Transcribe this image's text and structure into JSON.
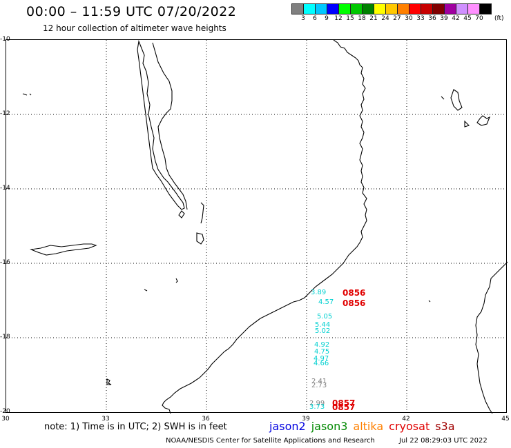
{
  "header": {
    "title": "00:00 – 11:59 UTC 07/20/2022",
    "subtitle": "12 hour collection of altimeter wave heights"
  },
  "legend": {
    "colors": [
      "#808080",
      "#00ffff",
      "#00c8ff",
      "#0000ff",
      "#00ff00",
      "#00c800",
      "#008000",
      "#ffff00",
      "#ffc800",
      "#ff8000",
      "#ff0000",
      "#c80000",
      "#800000",
      "#a000a0",
      "#d090ff",
      "#ff90ff",
      "#000000"
    ],
    "labels": [
      "3",
      "6",
      "9",
      "12",
      "15",
      "18",
      "21",
      "24",
      "27",
      "30",
      "33",
      "36",
      "39",
      "42",
      "45",
      "70"
    ],
    "unit": "(ft)"
  },
  "axes": {
    "lat_labels": [
      "-10",
      "-12",
      "-14",
      "-16",
      "-18",
      "-20"
    ],
    "lon_labels": [
      "30",
      "33",
      "36",
      "39",
      "42",
      "45"
    ]
  },
  "observations": [
    {
      "text": "3.89",
      "color": "#00d0d0",
      "id": "obs-1"
    },
    {
      "text": "4.57",
      "color": "#00d0d0",
      "id": "obs-2"
    },
    {
      "text": "5.05",
      "color": "#00d0d0",
      "id": "obs-3"
    },
    {
      "text": "5.44",
      "color": "#00d0d0",
      "id": "obs-4"
    },
    {
      "text": "5.02",
      "color": "#00d0d0",
      "id": "obs-5"
    },
    {
      "text": "4.92",
      "color": "#00d0d0",
      "id": "obs-6"
    },
    {
      "text": "4.75",
      "color": "#00d0d0",
      "id": "obs-7"
    },
    {
      "text": "4.97",
      "color": "#00d0d0",
      "id": "obs-8"
    },
    {
      "text": "4.66",
      "color": "#00d0d0",
      "id": "obs-9"
    },
    {
      "text": "2.41",
      "color": "#808080",
      "id": "obs-10"
    },
    {
      "text": "2.73",
      "color": "#808080",
      "id": "obs-11"
    },
    {
      "text": "2.99",
      "color": "#808080",
      "id": "obs-12"
    },
    {
      "text": "3.73",
      "color": "#00d0d0",
      "id": "obs-13"
    }
  ],
  "time_labels": [
    "0856",
    "0856",
    "0857",
    "0857"
  ],
  "footer": {
    "note": "note: 1) Time is in UTC; 2) SWH is in feet",
    "satellites": [
      {
        "name": "jason2",
        "color": "#0000e0"
      },
      {
        "name": "jason3",
        "color": "#008800"
      },
      {
        "name": "altika",
        "color": "#ff8000"
      },
      {
        "name": "cryosat",
        "color": "#e00000"
      },
      {
        "name": "s3a",
        "color": "#a00000"
      }
    ],
    "credit": "NOAA/NESDIS Center for Satellite Applications and Research",
    "timestamp": "Jul 22 08:29:03 UTC 2022"
  }
}
